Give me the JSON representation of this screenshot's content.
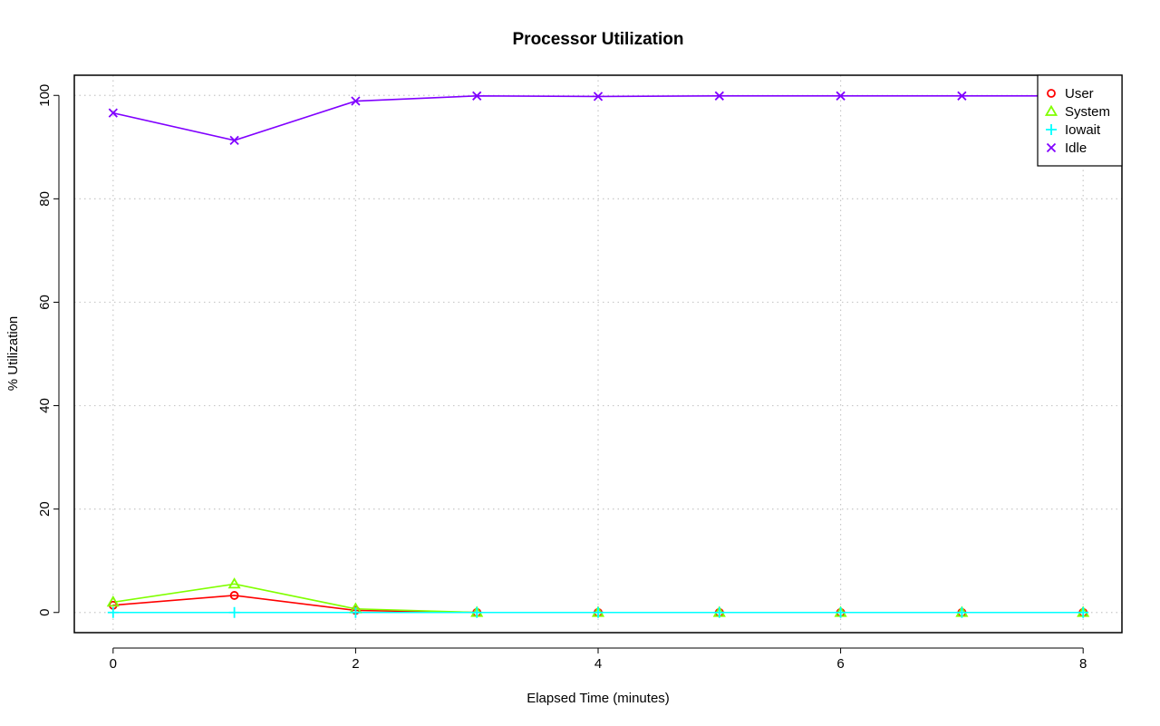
{
  "chart_data": {
    "type": "line",
    "title": "Processor Utilization",
    "xlabel": "Elapsed Time (minutes)",
    "ylabel": "% Utilization",
    "x": [
      0,
      1,
      2,
      3,
      4,
      5,
      6,
      7,
      8
    ],
    "xlim": [
      -0.32,
      8.32
    ],
    "ylim": [
      -3.9,
      103.9
    ],
    "x_ticks": [
      0,
      2,
      4,
      6,
      8
    ],
    "y_ticks": [
      0,
      20,
      40,
      60,
      80,
      100
    ],
    "grid": true,
    "legend_position": "top-right",
    "series": [
      {
        "name": "User",
        "marker": "circle",
        "color": "#ff0000",
        "values": [
          1.4,
          3.3,
          0.4,
          0.0,
          0.0,
          0.0,
          0.0,
          0.0,
          0.0
        ]
      },
      {
        "name": "System",
        "marker": "triangle",
        "color": "#80ff00",
        "values": [
          2.0,
          5.5,
          0.7,
          0.0,
          0.0,
          0.0,
          0.0,
          0.0,
          0.0
        ]
      },
      {
        "name": "Iowait",
        "marker": "plus",
        "color": "#00ffff",
        "values": [
          0.0,
          0.0,
          0.0,
          0.0,
          0.0,
          0.0,
          0.0,
          0.0,
          0.0
        ]
      },
      {
        "name": "Idle",
        "marker": "cross",
        "color": "#8000ff",
        "values": [
          96.6,
          91.3,
          98.9,
          99.9,
          99.8,
          99.9,
          99.9,
          99.9,
          99.9
        ]
      }
    ]
  }
}
